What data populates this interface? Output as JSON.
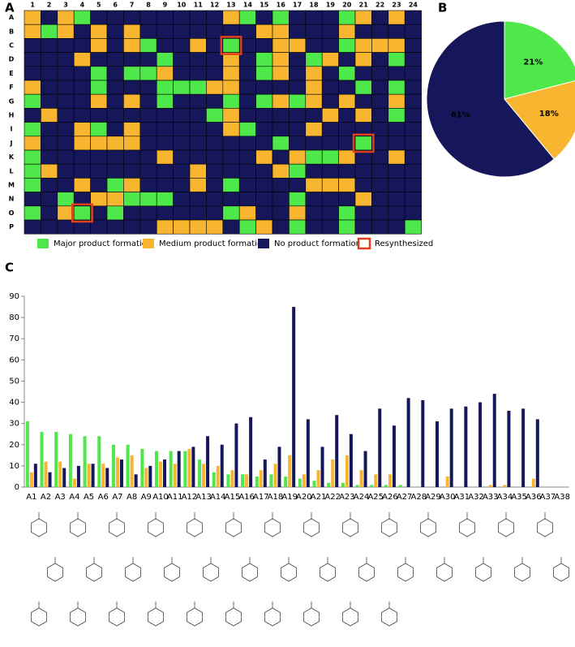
{
  "chart_data": [
    {
      "type": "heatmap",
      "panel": "A",
      "rows": [
        "A",
        "B",
        "C",
        "D",
        "E",
        "F",
        "G",
        "H",
        "I",
        "J",
        "K",
        "L",
        "M",
        "N",
        "O",
        "P"
      ],
      "columns": [
        1,
        2,
        3,
        4,
        5,
        6,
        7,
        8,
        9,
        10,
        11,
        12,
        13,
        14,
        15,
        16,
        17,
        18,
        19,
        20,
        21,
        22,
        23,
        24
      ],
      "legend": [
        "Major product formation",
        "Medium product formation",
        "No product formation",
        "Resynthesized"
      ],
      "colors": [
        "#4ee84a",
        "#f8b530",
        "#16175a"
      ],
      "highlight_color": "#e0401c",
      "cells": [
        [
          1,
          2,
          1,
          0,
          2,
          2,
          2,
          2,
          2,
          2,
          2,
          2,
          1,
          0,
          2,
          0,
          2,
          2,
          2,
          0,
          1,
          2,
          1,
          2
        ],
        [
          1,
          0,
          1,
          2,
          1,
          2,
          1,
          2,
          2,
          2,
          2,
          2,
          2,
          2,
          1,
          1,
          2,
          2,
          2,
          1,
          2,
          2,
          2,
          2
        ],
        [
          2,
          2,
          2,
          2,
          1,
          2,
          1,
          0,
          2,
          2,
          1,
          2,
          0,
          2,
          2,
          1,
          1,
          2,
          2,
          0,
          1,
          1,
          1,
          2
        ],
        [
          2,
          2,
          2,
          1,
          2,
          2,
          2,
          2,
          0,
          2,
          2,
          2,
          1,
          2,
          0,
          1,
          2,
          0,
          1,
          2,
          1,
          2,
          0,
          2
        ],
        [
          2,
          2,
          2,
          2,
          0,
          2,
          0,
          0,
          1,
          2,
          2,
          2,
          1,
          2,
          0,
          1,
          2,
          1,
          2,
          0,
          2,
          2,
          2,
          2
        ],
        [
          1,
          2,
          2,
          2,
          0,
          2,
          2,
          2,
          0,
          0,
          0,
          1,
          1,
          2,
          2,
          2,
          2,
          1,
          2,
          2,
          0,
          2,
          0,
          2
        ],
        [
          0,
          2,
          2,
          2,
          1,
          2,
          1,
          2,
          0,
          2,
          2,
          2,
          0,
          2,
          0,
          1,
          0,
          1,
          2,
          1,
          2,
          2,
          1,
          2
        ],
        [
          2,
          1,
          2,
          2,
          2,
          2,
          2,
          2,
          2,
          2,
          2,
          0,
          1,
          2,
          2,
          2,
          2,
          2,
          1,
          2,
          1,
          2,
          0,
          2
        ],
        [
          0,
          2,
          2,
          1,
          0,
          2,
          1,
          2,
          2,
          2,
          2,
          2,
          1,
          0,
          2,
          2,
          2,
          1,
          2,
          2,
          2,
          2,
          2,
          2
        ],
        [
          1,
          2,
          2,
          1,
          1,
          1,
          1,
          2,
          2,
          2,
          2,
          2,
          2,
          2,
          2,
          0,
          2,
          2,
          2,
          2,
          0,
          2,
          2,
          2
        ],
        [
          0,
          2,
          2,
          2,
          2,
          2,
          2,
          2,
          1,
          2,
          2,
          2,
          2,
          2,
          1,
          2,
          1,
          0,
          0,
          1,
          2,
          2,
          1,
          2
        ],
        [
          0,
          1,
          2,
          2,
          2,
          2,
          2,
          2,
          2,
          2,
          1,
          2,
          2,
          2,
          2,
          1,
          0,
          2,
          2,
          2,
          2,
          2,
          2,
          2
        ],
        [
          0,
          2,
          2,
          1,
          2,
          0,
          1,
          2,
          2,
          2,
          1,
          2,
          0,
          2,
          2,
          2,
          2,
          1,
          1,
          1,
          2,
          2,
          2,
          2
        ],
        [
          2,
          2,
          0,
          2,
          1,
          1,
          0,
          0,
          0,
          2,
          2,
          2,
          2,
          2,
          2,
          2,
          0,
          2,
          2,
          2,
          1,
          2,
          2,
          2
        ],
        [
          0,
          2,
          1,
          0,
          2,
          0,
          2,
          2,
          2,
          2,
          2,
          2,
          0,
          1,
          2,
          2,
          1,
          2,
          2,
          0,
          2,
          2,
          2,
          2
        ],
        [
          2,
          2,
          2,
          2,
          2,
          2,
          2,
          2,
          1,
          1,
          1,
          1,
          2,
          0,
          1,
          2,
          0,
          2,
          2,
          0,
          2,
          2,
          2,
          0
        ]
      ],
      "resynthesized": [
        {
          "row": "C",
          "column": 13
        },
        {
          "row": "J",
          "column": 21
        },
        {
          "row": "O",
          "column": 4
        }
      ]
    },
    {
      "type": "pie",
      "panel": "B",
      "values": [
        21,
        18,
        61
      ],
      "value_labels": [
        "21%",
        "18%",
        "61%"
      ],
      "colors": [
        "#4ee84a",
        "#f8b530",
        "#16175a"
      ],
      "label_colors": [
        "#16175a",
        "#16175a",
        "#ffffff"
      ]
    },
    {
      "type": "bar",
      "panel": "C",
      "categories": [
        "A1",
        "A2",
        "A3",
        "A4",
        "A5",
        "A6",
        "A7",
        "A8",
        "A9",
        "A10",
        "A11",
        "A12",
        "A13",
        "A14",
        "A15",
        "A16",
        "A17",
        "A18",
        "A19",
        "A20",
        "A21",
        "A22",
        "A23",
        "A24",
        "A25",
        "A26",
        "A27",
        "A28",
        "A29",
        "A30",
        "A31",
        "A32",
        "A33",
        "A34",
        "A35",
        "A36",
        "A37",
        "A38"
      ],
      "series": [
        {
          "color": "#4ee84a",
          "values": [
            31,
            26,
            26,
            25,
            24,
            24,
            20,
            20,
            18,
            17,
            17,
            17,
            13,
            7,
            6,
            6,
            5,
            6,
            5,
            4,
            3,
            2,
            2,
            1,
            1,
            1,
            1,
            0,
            0,
            0,
            0,
            0,
            0,
            0,
            0,
            0,
            0,
            0
          ]
        },
        {
          "color": "#f8b530",
          "values": [
            7,
            12,
            12,
            4,
            11,
            11,
            14,
            15,
            9,
            12,
            11,
            18,
            11,
            10,
            8,
            6,
            8,
            11,
            15,
            6,
            8,
            13,
            15,
            8,
            6,
            6,
            0,
            0,
            0,
            5,
            0,
            0,
            1,
            1,
            0,
            4,
            0,
            0
          ]
        },
        {
          "color": "#16175a",
          "values": [
            11,
            7,
            9,
            10,
            11,
            9,
            13,
            6,
            10,
            13,
            17,
            19,
            24,
            20,
            30,
            33,
            13,
            19,
            85,
            32,
            19,
            34,
            25,
            17,
            37,
            29,
            42,
            41,
            31,
            37,
            38,
            40,
            44,
            36,
            37,
            32,
            0,
            0
          ]
        }
      ],
      "ylim": [
        0,
        90
      ],
      "yticks": [
        0,
        10,
        20,
        30,
        40,
        50,
        60,
        70,
        80,
        90
      ],
      "grid": false
    }
  ]
}
